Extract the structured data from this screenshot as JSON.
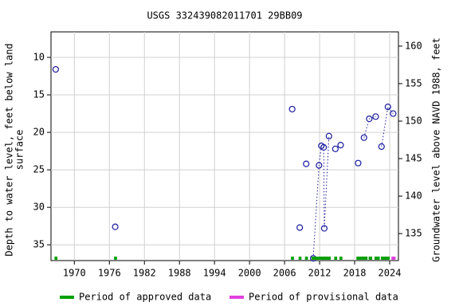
{
  "chart_data": {
    "type": "scatter",
    "title": "USGS 332439082011701 29BB09",
    "y_label": [
      "Depth to water level, feet below land",
      "surface"
    ],
    "y2_label": "Groundwater level above NAVD 1988, feet",
    "xlim": [
      1966.0,
      2025.5
    ],
    "xticks": [
      1970,
      1976,
      1982,
      1988,
      1994,
      2000,
      2006,
      2012,
      2018,
      2024
    ],
    "ylim": [
      37.1,
      6.6
    ],
    "yticks": [
      10,
      15,
      20,
      25,
      30,
      35
    ],
    "y2lim": [
      131.4,
      161.9
    ],
    "y2ticks": [
      135,
      140,
      145,
      150,
      155,
      160
    ],
    "grid": true,
    "series": [
      {
        "color": "#1a1aa0",
        "x": [
          1966.8,
          null,
          1977.0,
          null,
          2007.3,
          null,
          2008.6,
          null,
          2009.7,
          null,
          2010.9,
          2011.9,
          2012.3,
          2012.7,
          2012.8,
          2013.6,
          null,
          2014.7,
          null,
          2015.6,
          null,
          2018.6,
          null,
          2019.6,
          2020.5,
          2021.6,
          null,
          2022.6,
          2023.7,
          2024.6
        ],
        "values": [
          11.6,
          null,
          32.6,
          null,
          16.9,
          null,
          32.7,
          null,
          24.2,
          null,
          36.8,
          24.4,
          21.8,
          22.0,
          32.8,
          20.5,
          null,
          22.2,
          null,
          21.7,
          null,
          24.1,
          null,
          20.7,
          18.2,
          17.9,
          null,
          21.9,
          16.6,
          17.5
        ]
      }
    ],
    "periods": [
      {
        "name": "Period of approved data",
        "color": "#00a000",
        "ranges": [
          [
            1966.6,
            1967.1
          ],
          [
            1976.8,
            1977.3
          ],
          [
            2007.1,
            2007.6
          ],
          [
            2008.4,
            2008.9
          ],
          [
            2009.5,
            2010.0
          ],
          [
            2010.6,
            2013.9
          ],
          [
            2014.5,
            2015.0
          ],
          [
            2015.4,
            2015.9
          ],
          [
            2018.3,
            2020.2
          ],
          [
            2020.4,
            2021.0
          ],
          [
            2021.4,
            2022.3
          ],
          [
            2022.5,
            2024.0
          ]
        ]
      },
      {
        "name": "Period of provisional data",
        "color": "#e040e0",
        "ranges": [
          [
            2024.3,
            2025.0
          ]
        ]
      }
    ]
  }
}
